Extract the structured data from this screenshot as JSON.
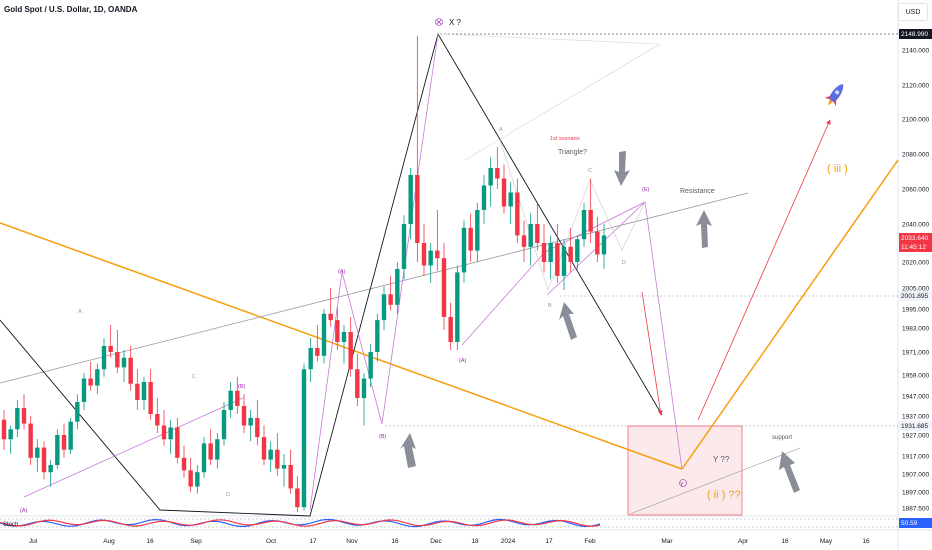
{
  "header": {
    "title": "Gold Spot / U.S. Dollar, 1D, OANDA",
    "currency_button": "USD"
  },
  "colors": {
    "up": "#089981",
    "down": "#f23645",
    "orange": "#f59e0b",
    "purple": "#c77bd6",
    "grey_line": "#9598a1",
    "red_arrow": "#f23645",
    "text_purple": "#9c27b0"
  },
  "price_axis": {
    "ticks": [
      "2140.000",
      "2120.000",
      "2100.000",
      "2080.000",
      "2060.000",
      "2040.000",
      "2020.000",
      "2005.000",
      "1995.000",
      "1983.000",
      "1971.000",
      "1959.000",
      "1947.000",
      "1937.000",
      "1927.000",
      "1917.000",
      "1907.000",
      "1897.000",
      "1887.500"
    ],
    "marker_top": "2148.990",
    "marker_resistance": "2001.895",
    "marker_support": "1931.685",
    "current_price": "2033.640",
    "countdown": "11:45:12",
    "oscillator_value": "50.59"
  },
  "time_axis": {
    "labels": [
      "Jul",
      "Aug",
      "16",
      "Sep",
      "Oct",
      "17",
      "Nov",
      "16",
      "Dec",
      "18",
      "2024",
      "17",
      "Feb",
      "Mar",
      "Apr",
      "16",
      "May",
      "16"
    ]
  },
  "annotations": {
    "x_label": "X ?",
    "scenario": "1st scenario",
    "triangle": "Triangle?",
    "resistance": "Resistance",
    "support": "support",
    "y_label": "Y ??",
    "wave_iii": "( iii )",
    "wave_ii": "( ii ) ??",
    "wave_A_top": "(A)",
    "wave_B_low": "(B)",
    "wave_A_low": "(A)",
    "wave_B_mid": "(B)",
    "wave_C": "C",
    "wave_D_top": "(D)",
    "wave_a": "A",
    "wave_c": "C",
    "wave_d": "D",
    "tri_a": "A",
    "tri_b": "B",
    "tri_c": "C",
    "tri_d": "D",
    "tri_e": "(E)",
    "wave_y_circle": "Y",
    "osc_label": "Stoch"
  },
  "chart_data": {
    "type": "candlestick",
    "title": "Gold Spot / U.S. Dollar, 1D, OANDA",
    "currency": "USD",
    "ylim": [
      1885,
      2152
    ],
    "yticks": [
      2140,
      2120,
      2100,
      2080,
      2060,
      2040,
      2020,
      2005,
      1995,
      1983,
      1971,
      1959,
      1947,
      1937,
      1927,
      1917,
      1907,
      1897,
      1887.5
    ],
    "key_levels": {
      "high": 2148.99,
      "resistance": 2001.895,
      "support": 1931.685,
      "last": 2033.64
    },
    "ohlc": [
      [
        1935,
        1940,
        1920,
        1925
      ],
      [
        1925,
        1932,
        1918,
        1930
      ],
      [
        1930,
        1945,
        1926,
        1941
      ],
      [
        1941,
        1948,
        1930,
        1933
      ],
      [
        1933,
        1937,
        1912,
        1916
      ],
      [
        1916,
        1925,
        1908,
        1921
      ],
      [
        1921,
        1924,
        1904,
        1908
      ],
      [
        1908,
        1915,
        1900,
        1912
      ],
      [
        1912,
        1930,
        1910,
        1927
      ],
      [
        1927,
        1933,
        1916,
        1920
      ],
      [
        1920,
        1936,
        1918,
        1934
      ],
      [
        1934,
        1948,
        1930,
        1944
      ],
      [
        1944,
        1960,
        1940,
        1957
      ],
      [
        1957,
        1966,
        1950,
        1953
      ],
      [
        1953,
        1965,
        1948,
        1962
      ],
      [
        1962,
        1978,
        1958,
        1974
      ],
      [
        1974,
        1985,
        1968,
        1971
      ],
      [
        1971,
        1982,
        1960,
        1963
      ],
      [
        1963,
        1972,
        1955,
        1968
      ],
      [
        1968,
        1974,
        1950,
        1954
      ],
      [
        1954,
        1962,
        1940,
        1945
      ],
      [
        1945,
        1958,
        1940,
        1955
      ],
      [
        1955,
        1962,
        1935,
        1938
      ],
      [
        1938,
        1946,
        1928,
        1932
      ],
      [
        1932,
        1940,
        1922,
        1925
      ],
      [
        1925,
        1935,
        1918,
        1931
      ],
      [
        1931,
        1936,
        1913,
        1916
      ],
      [
        1916,
        1922,
        1905,
        1909
      ],
      [
        1909,
        1916,
        1897,
        1900
      ],
      [
        1900,
        1912,
        1896,
        1908
      ],
      [
        1908,
        1926,
        1905,
        1923
      ],
      [
        1923,
        1930,
        1912,
        1915
      ],
      [
        1915,
        1928,
        1910,
        1925
      ],
      [
        1925,
        1944,
        1922,
        1940
      ],
      [
        1940,
        1955,
        1936,
        1950
      ],
      [
        1950,
        1958,
        1938,
        1942
      ],
      [
        1942,
        1948,
        1928,
        1932
      ],
      [
        1932,
        1940,
        1924,
        1936
      ],
      [
        1936,
        1945,
        1922,
        1926
      ],
      [
        1926,
        1932,
        1912,
        1915
      ],
      [
        1915,
        1924,
        1908,
        1920
      ],
      [
        1920,
        1928,
        1906,
        1910
      ],
      [
        1910,
        1918,
        1900,
        1912
      ],
      [
        1912,
        1920,
        1896,
        1899
      ],
      [
        1899,
        1906,
        1885,
        1888
      ],
      [
        1888,
        1965,
        1886,
        1962
      ],
      [
        1962,
        1978,
        1955,
        1973
      ],
      [
        1973,
        1985,
        1966,
        1969
      ],
      [
        1969,
        1995,
        1965,
        1992
      ],
      [
        1992,
        2005,
        1984,
        1988
      ],
      [
        1988,
        1996,
        1972,
        1976
      ],
      [
        1976,
        1985,
        1965,
        1981
      ],
      [
        1981,
        1990,
        1958,
        1962
      ],
      [
        1962,
        1970,
        1942,
        1946
      ],
      [
        1946,
        1960,
        1932,
        1957
      ],
      [
        1957,
        1975,
        1952,
        1971
      ],
      [
        1971,
        1992,
        1966,
        1988
      ],
      [
        1988,
        2006,
        1982,
        2002
      ],
      [
        2002,
        2012,
        1994,
        1997
      ],
      [
        1997,
        2020,
        1992,
        2016
      ],
      [
        2016,
        2045,
        2010,
        2040
      ],
      [
        2040,
        2072,
        2032,
        2068
      ],
      [
        2068,
        2148,
        2020,
        2030
      ],
      [
        2030,
        2040,
        2012,
        2018
      ],
      [
        2018,
        2030,
        2008,
        2026
      ],
      [
        2026,
        2048,
        2015,
        2022
      ],
      [
        2022,
        2030,
        1982,
        1990
      ],
      [
        1990,
        1998,
        1972,
        1976
      ],
      [
        1976,
        2018,
        1972,
        2014
      ],
      [
        2014,
        2042,
        2008,
        2038
      ],
      [
        2038,
        2046,
        2020,
        2026
      ],
      [
        2026,
        2052,
        2020,
        2048
      ],
      [
        2048,
        2068,
        2040,
        2062
      ],
      [
        2062,
        2078,
        2050,
        2072
      ],
      [
        2072,
        2084,
        2060,
        2066
      ],
      [
        2066,
        2074,
        2046,
        2050
      ],
      [
        2050,
        2064,
        2040,
        2058
      ],
      [
        2058,
        2066,
        2030,
        2034
      ],
      [
        2034,
        2042,
        2020,
        2028
      ],
      [
        2028,
        2046,
        2018,
        2040
      ],
      [
        2040,
        2052,
        2026,
        2030
      ],
      [
        2030,
        2040,
        2014,
        2020
      ],
      [
        2020,
        2034,
        2010,
        2030
      ],
      [
        2030,
        2040,
        2008,
        2012
      ],
      [
        2012,
        2032,
        2004,
        2028
      ],
      [
        2028,
        2038,
        2014,
        2020
      ],
      [
        2020,
        2034,
        2016,
        2032
      ],
      [
        2032,
        2052,
        2028,
        2048
      ],
      [
        2048,
        2066,
        2030,
        2036
      ],
      [
        2036,
        2044,
        2020,
        2024
      ],
      [
        2024,
        2040,
        2016,
        2034
      ]
    ],
    "oscillator": {
      "name": "Stoch",
      "last": 50.59
    }
  }
}
